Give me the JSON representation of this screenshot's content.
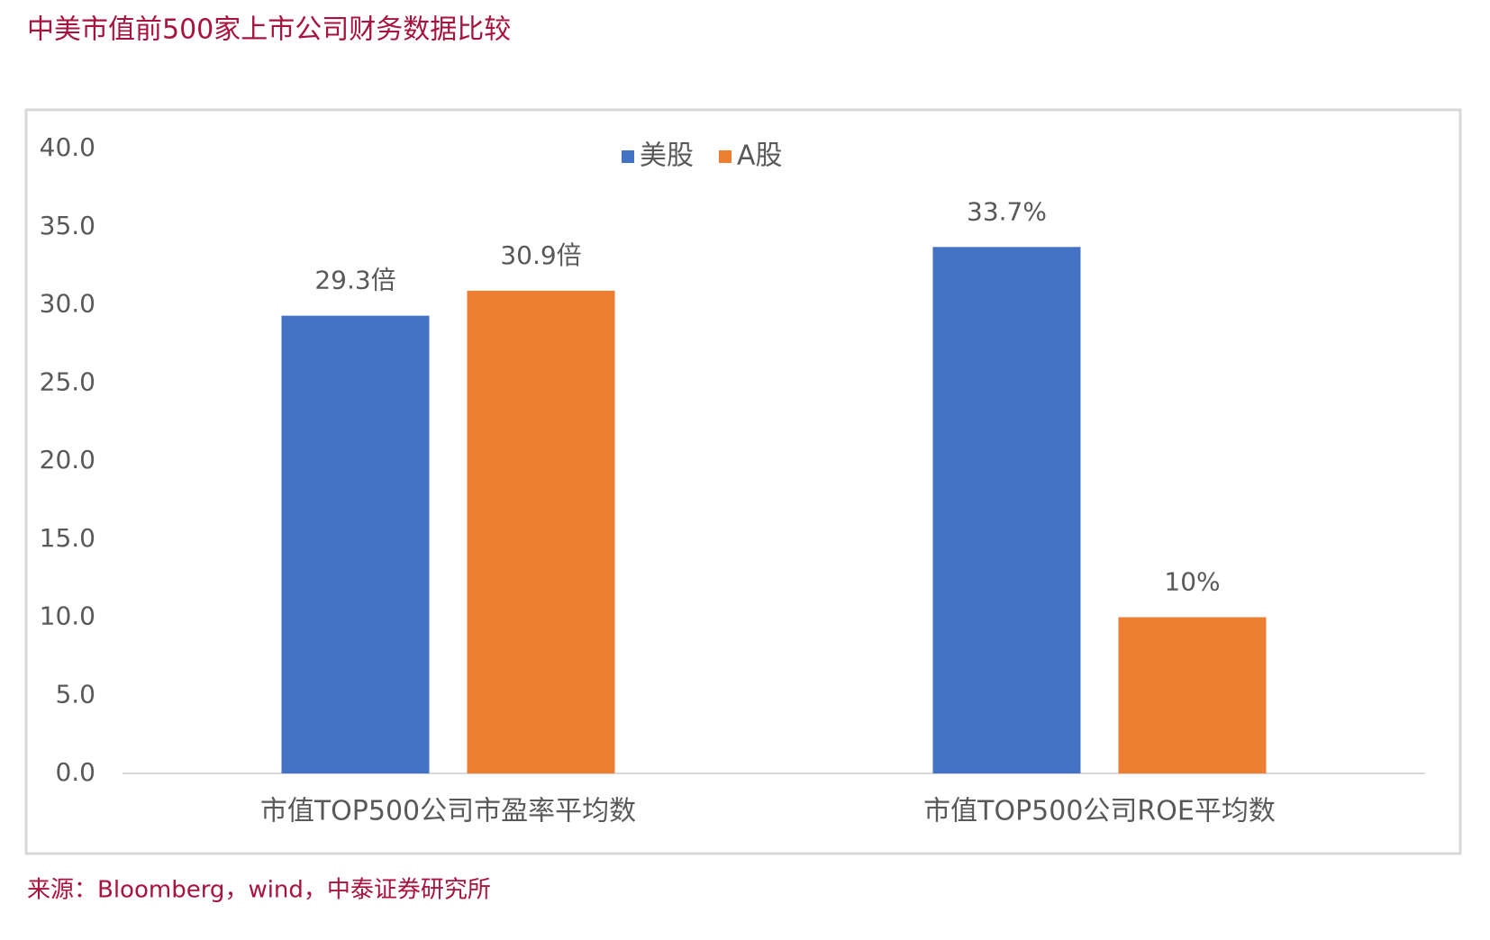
{
  "chart_data": {
    "type": "bar",
    "title": "中美市值前500家上市公司财务数据比较",
    "source": "来源：Bloomberg，wind，中泰证券研究所",
    "categories": [
      "市值TOP500公司市盈率平均数",
      "市值TOP500公司ROE平均数"
    ],
    "series": [
      {
        "name": "美股",
        "color": "#4472c4",
        "values": [
          29.3,
          33.7
        ],
        "value_labels": [
          "29.3倍",
          "33.7%"
        ]
      },
      {
        "name": "A股",
        "color": "#ed7d31",
        "values": [
          30.9,
          10
        ],
        "value_labels": [
          "30.9倍",
          "10%"
        ]
      }
    ],
    "ylim": [
      0,
      40
    ],
    "yticks": [
      {
        "value": 0,
        "label": "0.0"
      },
      {
        "value": 5,
        "label": "5.0"
      },
      {
        "value": 10,
        "label": "10.0"
      },
      {
        "value": 15,
        "label": "15.0"
      },
      {
        "value": 20,
        "label": "20.0"
      },
      {
        "value": 25,
        "label": "25.0"
      },
      {
        "value": 30,
        "label": "30.0"
      },
      {
        "value": 35,
        "label": "35.0"
      },
      {
        "value": 40,
        "label": "40.0"
      }
    ],
    "grid": false,
    "legend": "top"
  }
}
